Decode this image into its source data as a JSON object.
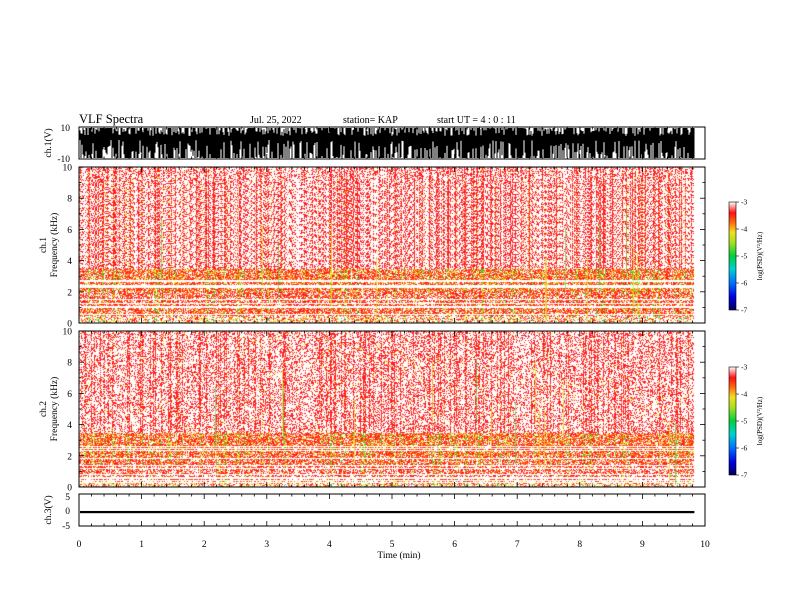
{
  "header": {
    "title": "VLF Spectra",
    "date": "Jul. 25, 2022",
    "station": "station= KAP",
    "start_time": "start  UT =   4 : 0  : 11"
  },
  "colors": {
    "background": "#ffffff",
    "axes": "#000000",
    "spectrum_high": "#ff2020",
    "spectrum_mid": "#e8e020",
    "spectrum_low": "#20d040"
  },
  "chart_data": [
    {
      "type": "line",
      "name": "ch1-waveform",
      "ylabel": "ch.1(V)",
      "ylim": [
        -10,
        10
      ],
      "yticks": [
        "10",
        "-10"
      ],
      "xlim": [
        0,
        9.83
      ],
      "note_value": "saturated wideband noise filling most of +/-10 V"
    },
    {
      "type": "heatmap",
      "name": "ch1-spectrogram",
      "ylabel": "ch.1\nFrequency (kHz)",
      "ylim": [
        0,
        10
      ],
      "yticks": [
        "0",
        "2",
        "4",
        "6",
        "8",
        "10"
      ],
      "xlim": [
        0,
        9.83
      ],
      "intensity_bands_khz": [
        {
          "from": 0,
          "to": 0.4,
          "level": -4.3
        },
        {
          "from": 0.4,
          "to": 1.2,
          "level": -4.0
        },
        {
          "from": 1.2,
          "to": 2.0,
          "level": -3.9
        },
        {
          "from": 2.0,
          "to": 3.5,
          "level": -4.1
        },
        {
          "from": 3.5,
          "to": 10,
          "level": -4.6
        }
      ],
      "colorbar": {
        "label": "log(PSD)(V²/Hz)",
        "range": [
          -7,
          -3
        ],
        "ticks": [
          "-3",
          "-4",
          "-5",
          "-6",
          "-7"
        ]
      }
    },
    {
      "type": "heatmap",
      "name": "ch2-spectrogram",
      "ylabel": "ch.2\nFrequency (kHz)",
      "ylim": [
        0,
        10
      ],
      "yticks": [
        "0",
        "2",
        "4",
        "6",
        "8",
        "10"
      ],
      "xlim": [
        0,
        9.83
      ],
      "intensity_bands_khz": [
        {
          "from": 0,
          "to": 0.4,
          "level": -4.3
        },
        {
          "from": 0.4,
          "to": 1.4,
          "level": -3.8
        },
        {
          "from": 1.4,
          "to": 2.0,
          "level": -4.0
        },
        {
          "from": 2.0,
          "to": 3.5,
          "level": -4.1
        },
        {
          "from": 3.5,
          "to": 10,
          "level": -4.6
        }
      ],
      "colorbar": {
        "label": "log(PSD)(V²/Hz)",
        "range": [
          -7,
          -3
        ],
        "ticks": [
          "-3",
          "-4",
          "-5",
          "-6",
          "-7"
        ]
      }
    },
    {
      "type": "line",
      "name": "ch3-waveform",
      "ylabel": "ch.3(V)",
      "ylim": [
        -5,
        5
      ],
      "yticks": [
        "5",
        "0",
        "-5"
      ],
      "xlim": [
        0,
        9.83
      ],
      "band": [
        -1.0,
        -0.3
      ]
    }
  ],
  "xaxis": {
    "label": "Time (min)",
    "range": [
      0,
      10
    ],
    "ticks": [
      "0",
      "1",
      "2",
      "3",
      "4",
      "5",
      "6",
      "7",
      "8",
      "9",
      "10"
    ]
  }
}
